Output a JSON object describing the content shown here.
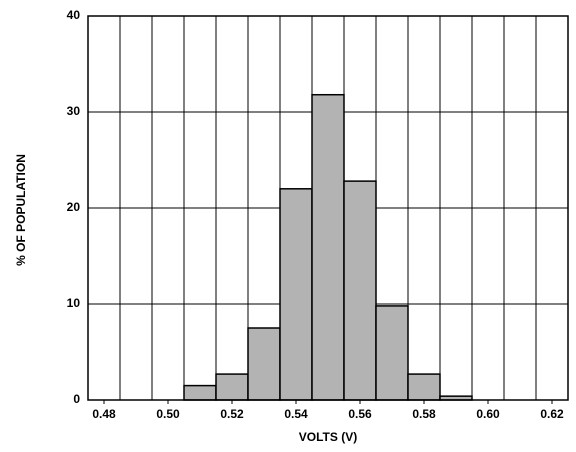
{
  "chart_data": {
    "type": "histogram",
    "xlabel": "VOLTS (V)",
    "ylabel": "% OF POPULATION",
    "bins": [
      0.475,
      0.485,
      0.495,
      0.505,
      0.515,
      0.525,
      0.535,
      0.545,
      0.555,
      0.565,
      0.575,
      0.585,
      0.595,
      0.605,
      0.615,
      0.625
    ],
    "values": [
      0,
      0,
      0,
      1.5,
      2.7,
      7.5,
      22,
      31.8,
      22.8,
      9.8,
      2.7,
      0.4,
      0,
      0,
      0
    ],
    "color": "#b3b3b3",
    "xlim": [
      0.475,
      0.625
    ],
    "xticks": [
      {
        "value": 0.48,
        "label": "0.48"
      },
      {
        "value": 0.5,
        "label": "0.50"
      },
      {
        "value": 0.52,
        "label": "0.52"
      },
      {
        "value": 0.54,
        "label": "0.54"
      },
      {
        "value": 0.56,
        "label": "0.56"
      },
      {
        "value": 0.58,
        "label": "0.58"
      },
      {
        "value": 0.6,
        "label": "0.60"
      },
      {
        "value": 0.62,
        "label": "0.62"
      }
    ],
    "ylim": [
      0,
      40
    ],
    "yticks": [
      0,
      10,
      20,
      30,
      40
    ],
    "grid": true
  }
}
